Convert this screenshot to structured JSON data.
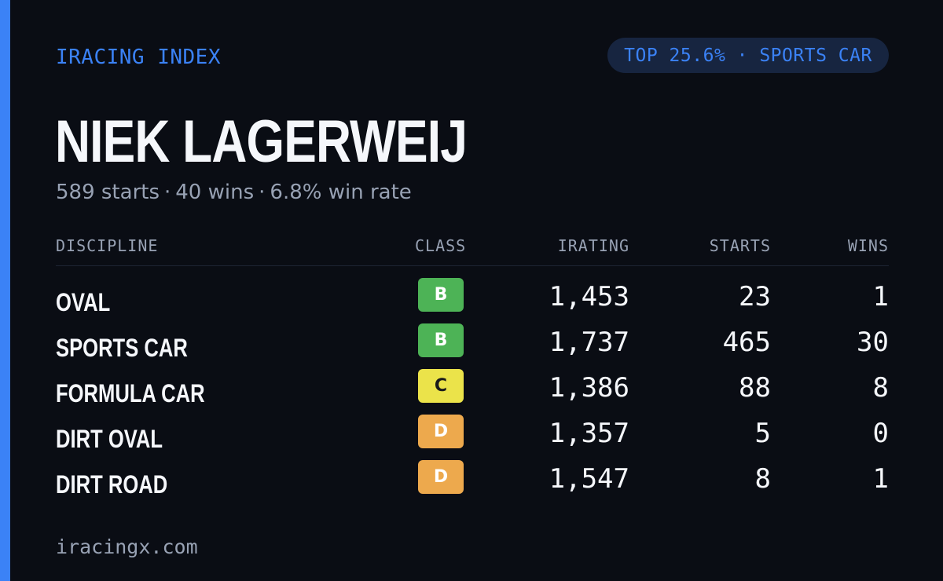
{
  "brand": "IRACING INDEX",
  "rank_badge": "TOP 25.6% · SPORTS CAR",
  "driver": {
    "name": "NIEK LAGERWEIJ",
    "starts": "589 starts",
    "wins": "40 wins",
    "win_rate": "6.8% win rate",
    "separator": "·"
  },
  "table": {
    "headers": {
      "discipline": "DISCIPLINE",
      "class": "CLASS",
      "irating": "IRATING",
      "starts": "STARTS",
      "wins": "WINS"
    },
    "rows": [
      {
        "discipline": "OVAL",
        "class": "B",
        "irating": "1,453",
        "starts": "23",
        "wins": "1"
      },
      {
        "discipline": "SPORTS CAR",
        "class": "B",
        "irating": "1,737",
        "starts": "465",
        "wins": "30"
      },
      {
        "discipline": "FORMULA CAR",
        "class": "C",
        "irating": "1,386",
        "starts": "88",
        "wins": "8"
      },
      {
        "discipline": "DIRT OVAL",
        "class": "D",
        "irating": "1,357",
        "starts": "5",
        "wins": "0"
      },
      {
        "discipline": "DIRT ROAD",
        "class": "D",
        "irating": "1,547",
        "starts": "8",
        "wins": "1"
      }
    ]
  },
  "class_colors": {
    "B": {
      "bg": "#4db356",
      "fg": "#ffffff"
    },
    "C": {
      "bg": "#ebe34a",
      "fg": "#1a1a1a"
    },
    "D": {
      "bg": "#eda94d",
      "fg": "#ffffff"
    }
  },
  "colors": {
    "accent": "#3b82f6",
    "background": "#0a0d14",
    "muted_text": "#98a2b4"
  },
  "footer": "iracingx.com"
}
